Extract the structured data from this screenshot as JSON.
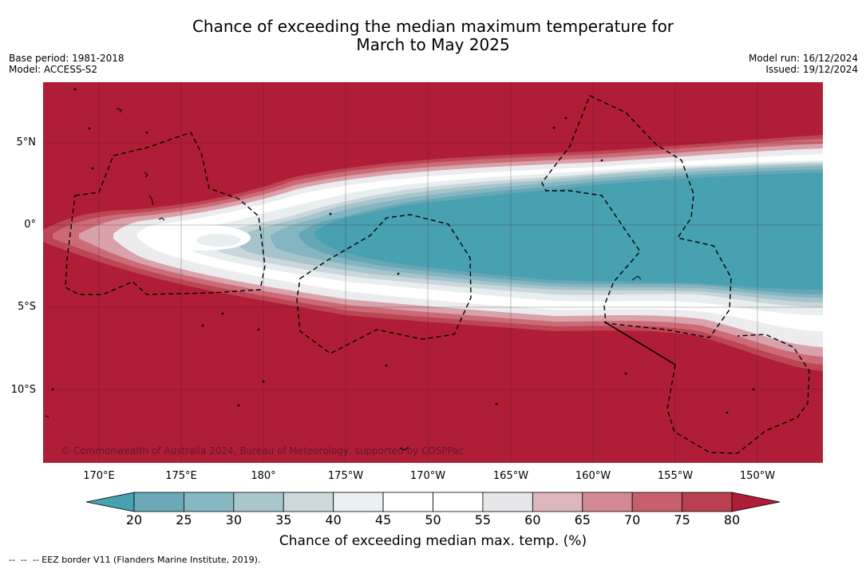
{
  "title": {
    "line1": "Chance of exceeding the median maximum temperature for",
    "line2": "March to May 2025"
  },
  "meta": {
    "base_period": "Base period: 1981-2018",
    "model": "Model: ACCESS-S2",
    "model_run": "Model run: 16/12/2024",
    "issued": "Issued: 19/12/2024"
  },
  "map": {
    "copyright": "© Commonwealth of Australia 2024, Bureau of Meteorology, supported by COSPPac",
    "lat_labels": [
      "5°N",
      "0°",
      "5°S",
      "10°S"
    ],
    "lon_labels": [
      "170°E",
      "175°E",
      "180°",
      "175°W",
      "170°W",
      "165°W",
      "160°W",
      "155°W",
      "150°W"
    ],
    "gridlines": true
  },
  "colorbar": {
    "ticks": [
      "20",
      "25",
      "30",
      "35",
      "40",
      "45",
      "50",
      "55",
      "60",
      "65",
      "70",
      "75",
      "80"
    ],
    "colors": [
      "#48a1b1",
      "#6ba9b9",
      "#87b7c3",
      "#a9c6cc",
      "#cdd8dd",
      "#eaeff1",
      "#ffffff",
      "#ffffff",
      "#e7e6e8",
      "#ddb6bc",
      "#d48a94",
      "#c85f6d",
      "#b9404f",
      "#b01d37"
    ],
    "title": "Chance of exceeding median max. temp. (%)"
  },
  "legend": {
    "eez_note": "--  --  -- EEZ border V11 (Flanders Marine Institute, 2019)."
  }
}
